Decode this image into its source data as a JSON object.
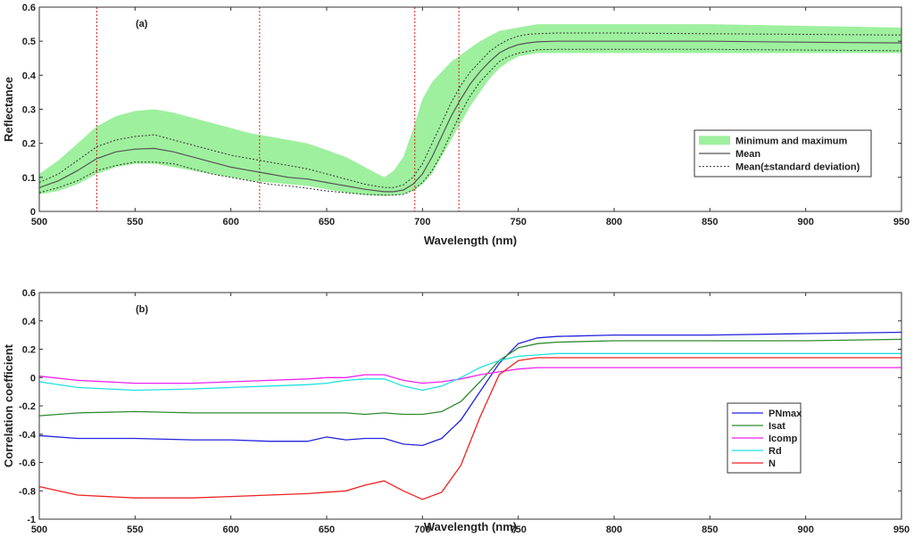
{
  "chart_data": [
    {
      "type": "line",
      "panel_label": "(a)",
      "xlabel": "Wavelength (nm)",
      "ylabel": "Reflectance",
      "xlim": [
        500,
        950
      ],
      "ylim": [
        0,
        0.6
      ],
      "xticks": [
        500,
        550,
        600,
        650,
        700,
        750,
        800,
        850,
        900,
        950
      ],
      "yticks": [
        0,
        0.1,
        0.2,
        0.3,
        0.4,
        0.5,
        0.6
      ],
      "grid": false,
      "legend_position": "right",
      "vertical_lines": [
        530,
        615,
        696,
        719
      ],
      "x": [
        500,
        510,
        520,
        530,
        540,
        550,
        560,
        570,
        580,
        590,
        600,
        610,
        620,
        630,
        640,
        650,
        660,
        670,
        680,
        685,
        690,
        695,
        700,
        705,
        710,
        715,
        720,
        725,
        730,
        735,
        740,
        745,
        750,
        755,
        760,
        770,
        780,
        800,
        850,
        900,
        950
      ],
      "series": [
        {
          "name": "Minimum and maximum",
          "style": "band",
          "lower": [
            0.05,
            0.06,
            0.08,
            0.11,
            0.13,
            0.14,
            0.14,
            0.13,
            0.12,
            0.11,
            0.1,
            0.09,
            0.085,
            0.08,
            0.075,
            0.065,
            0.055,
            0.048,
            0.045,
            0.047,
            0.05,
            0.06,
            0.08,
            0.11,
            0.16,
            0.21,
            0.26,
            0.31,
            0.35,
            0.39,
            0.42,
            0.44,
            0.455,
            0.46,
            0.465,
            0.465,
            0.465,
            0.465,
            0.465,
            0.465,
            0.465
          ],
          "upper": [
            0.11,
            0.15,
            0.2,
            0.25,
            0.28,
            0.295,
            0.3,
            0.29,
            0.275,
            0.26,
            0.245,
            0.23,
            0.22,
            0.21,
            0.2,
            0.18,
            0.16,
            0.13,
            0.1,
            0.12,
            0.16,
            0.24,
            0.33,
            0.38,
            0.41,
            0.44,
            0.46,
            0.48,
            0.5,
            0.515,
            0.53,
            0.535,
            0.54,
            0.545,
            0.55,
            0.55,
            0.55,
            0.55,
            0.55,
            0.545,
            0.54
          ]
        },
        {
          "name": "Mean",
          "style": "solid",
          "values": [
            0.07,
            0.09,
            0.12,
            0.155,
            0.175,
            0.183,
            0.185,
            0.175,
            0.16,
            0.145,
            0.13,
            0.12,
            0.11,
            0.1,
            0.095,
            0.085,
            0.075,
            0.065,
            0.058,
            0.058,
            0.063,
            0.08,
            0.11,
            0.16,
            0.22,
            0.28,
            0.33,
            0.375,
            0.41,
            0.44,
            0.465,
            0.48,
            0.49,
            0.495,
            0.498,
            0.5,
            0.5,
            0.5,
            0.5,
            0.497,
            0.495
          ]
        },
        {
          "name": "Mean(±standard deviation)",
          "style": "dotted",
          "values": [
            0.085,
            0.11,
            0.15,
            0.19,
            0.21,
            0.22,
            0.225,
            0.21,
            0.195,
            0.18,
            0.165,
            0.155,
            0.145,
            0.135,
            0.125,
            0.11,
            0.095,
            0.08,
            0.07,
            0.07,
            0.078,
            0.1,
            0.14,
            0.2,
            0.26,
            0.32,
            0.37,
            0.41,
            0.44,
            0.47,
            0.49,
            0.505,
            0.515,
            0.52,
            0.522,
            0.524,
            0.524,
            0.524,
            0.522,
            0.52,
            0.518
          ],
          "values_lower": [
            0.055,
            0.07,
            0.09,
            0.12,
            0.135,
            0.145,
            0.145,
            0.14,
            0.125,
            0.11,
            0.1,
            0.09,
            0.08,
            0.075,
            0.068,
            0.06,
            0.055,
            0.05,
            0.048,
            0.048,
            0.05,
            0.062,
            0.085,
            0.12,
            0.17,
            0.23,
            0.29,
            0.34,
            0.38,
            0.41,
            0.44,
            0.455,
            0.465,
            0.47,
            0.475,
            0.476,
            0.476,
            0.476,
            0.476,
            0.474,
            0.472
          ]
        }
      ]
    },
    {
      "type": "line",
      "panel_label": "(b)",
      "xlabel": "Wavelength (nm)",
      "ylabel": "Correlation coefficient",
      "xlim": [
        500,
        950
      ],
      "ylim": [
        -1,
        0.6
      ],
      "xticks": [
        500,
        550,
        600,
        650,
        700,
        750,
        800,
        850,
        900,
        950
      ],
      "yticks": [
        -1,
        -0.8,
        -0.6,
        -0.4,
        -0.2,
        0,
        0.2,
        0.4,
        0.6
      ],
      "grid": false,
      "legend_position": "right",
      "x": [
        500,
        520,
        550,
        580,
        600,
        620,
        640,
        650,
        660,
        670,
        680,
        690,
        700,
        710,
        720,
        730,
        740,
        750,
        760,
        770,
        800,
        850,
        900,
        950
      ],
      "series": [
        {
          "name": "PNmax",
          "color": "#2222dd",
          "values": [
            -0.41,
            -0.43,
            -0.43,
            -0.44,
            -0.44,
            -0.45,
            -0.45,
            -0.42,
            -0.44,
            -0.43,
            -0.43,
            -0.47,
            -0.48,
            -0.43,
            -0.3,
            -0.1,
            0.1,
            0.24,
            0.28,
            0.29,
            0.3,
            0.3,
            0.31,
            0.32
          ]
        },
        {
          "name": "Isat",
          "color": "#2e8b2e",
          "values": [
            -0.27,
            -0.25,
            -0.24,
            -0.25,
            -0.25,
            -0.25,
            -0.25,
            -0.25,
            -0.25,
            -0.26,
            -0.25,
            -0.26,
            -0.26,
            -0.24,
            -0.17,
            -0.03,
            0.12,
            0.21,
            0.24,
            0.25,
            0.26,
            0.26,
            0.26,
            0.27
          ]
        },
        {
          "name": "Icomp",
          "color": "#ee22ee",
          "values": [
            0.01,
            -0.02,
            -0.04,
            -0.04,
            -0.03,
            -0.02,
            -0.01,
            0.0,
            0.0,
            0.02,
            0.02,
            -0.02,
            -0.04,
            -0.03,
            -0.01,
            0.02,
            0.04,
            0.06,
            0.07,
            0.07,
            0.07,
            0.07,
            0.07,
            0.07
          ]
        },
        {
          "name": "Rd",
          "color": "#22e0e0",
          "values": [
            -0.03,
            -0.07,
            -0.09,
            -0.08,
            -0.07,
            -0.06,
            -0.05,
            -0.04,
            -0.02,
            -0.01,
            -0.01,
            -0.06,
            -0.09,
            -0.06,
            0.0,
            0.07,
            0.12,
            0.15,
            0.16,
            0.17,
            0.17,
            0.17,
            0.17,
            0.17
          ]
        },
        {
          "name": "N",
          "color": "#ee2222",
          "values": [
            -0.77,
            -0.83,
            -0.85,
            -0.85,
            -0.84,
            -0.83,
            -0.82,
            -0.81,
            -0.8,
            -0.76,
            -0.73,
            -0.8,
            -0.86,
            -0.81,
            -0.62,
            -0.28,
            0.02,
            0.12,
            0.14,
            0.14,
            0.14,
            0.14,
            0.14,
            0.14
          ]
        }
      ]
    }
  ]
}
